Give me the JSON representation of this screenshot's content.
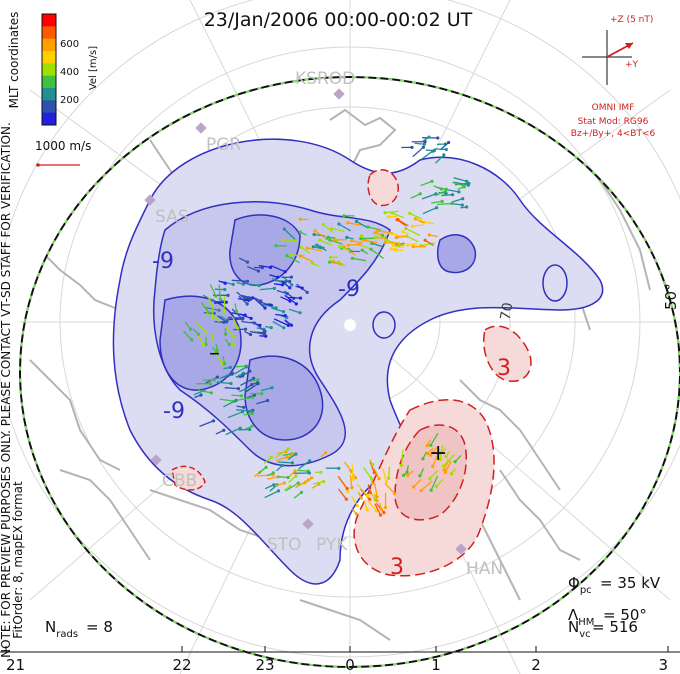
{
  "title": "23/Jan/2006 00:00-00:02 UT",
  "colorbar": {
    "unit_label": "Vel [m/s]",
    "ticks": [
      "600",
      "400",
      "200"
    ],
    "colors": [
      "#ff0000",
      "#ff5a00",
      "#ffa000",
      "#ffd000",
      "#a0e000",
      "#40c040",
      "#209090",
      "#3050b0",
      "#2020e0"
    ]
  },
  "coord_label": "MLT coordinates",
  "vector_scale": "1000 m/s",
  "side_note": "NOTE: FOR PREVIEW PURPOSES ONLY. PLEASE CONTACT VT-SD STAFF FOR VERIFICATION.",
  "fit_order": "FitOrder: 8, mapEX format",
  "imf": {
    "z_label": "+Z (5 nT)",
    "y_label": "+Y",
    "source": "OMNI IMF",
    "stat_mod": "Stat Mod: RG96",
    "bin": "Bz+/By+, 4<BT<6"
  },
  "stations": [
    "KSROD",
    "PGR",
    "SAS",
    "CBB",
    "STO",
    "PYK",
    "HAN"
  ],
  "contour_labels": [
    "-9",
    "-9",
    "-9",
    "70",
    "3",
    "3",
    "–",
    "+"
  ],
  "lat_label": "50°",
  "stats": {
    "phi_pc": "= 35 kV",
    "lambda_hm": "= 50°",
    "n_vc": "= 516",
    "n_rads": "= 8"
  },
  "mlt_ticks": [
    "21",
    "22",
    "23",
    "0",
    "1",
    "2",
    "3"
  ],
  "colors": {
    "negative_cell": "#3030c0",
    "positive_cell": "#d02020",
    "coastline": "#b4b4b4",
    "boundary_green": "#80e060"
  }
}
